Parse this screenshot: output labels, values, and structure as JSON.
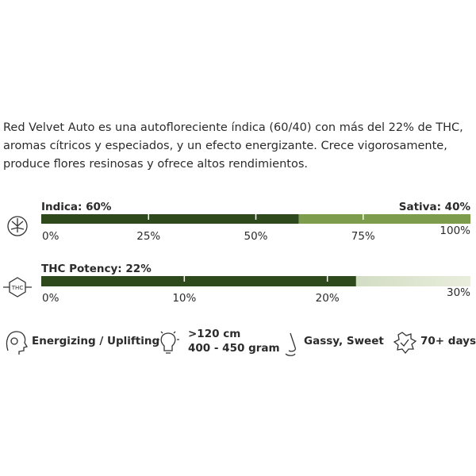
{
  "description": [
    "Red Velvet Auto es una autofloreciente índica (60/40) con más del 22% de THC,",
    "aromas cítricos y especiados, y un efecto energizante. Crece vigorosamente,",
    "produce flores resinosas y ofrece altos rendimientos."
  ],
  "genetics": {
    "scale": [
      0,
      100
    ],
    "segments": [
      {
        "label": "Indica: 60%",
        "value": 60,
        "color": "#2e4a1c"
      },
      {
        "label": "Sativa: 40%",
        "value": 40,
        "color": "#7d9c4c"
      }
    ],
    "ticks": [
      {
        "value": 0,
        "label": "0%"
      },
      {
        "value": 25,
        "label": "25%"
      },
      {
        "value": 50,
        "label": "50%"
      },
      {
        "value": 75,
        "label": "75%"
      },
      {
        "value": 100,
        "label": "100%"
      }
    ]
  },
  "thc": {
    "label": "THC Potency: 22%",
    "value": 22,
    "color": "#2e4a1c",
    "scale": [
      0,
      30
    ],
    "ticks": [
      {
        "value": 0,
        "label": "0%"
      },
      {
        "value": 10,
        "label": "10%"
      },
      {
        "value": 20,
        "label": "20%"
      },
      {
        "value": 30,
        "label": "30%"
      }
    ]
  },
  "features": [
    {
      "lines": [
        "Energizing / Uplifting"
      ]
    },
    {
      "lines": [
        ">120 cm",
        "400 - 450 gram"
      ]
    },
    {
      "lines": [
        "Gassy, Sweet"
      ]
    },
    {
      "lines": [
        "70+ days"
      ]
    }
  ]
}
